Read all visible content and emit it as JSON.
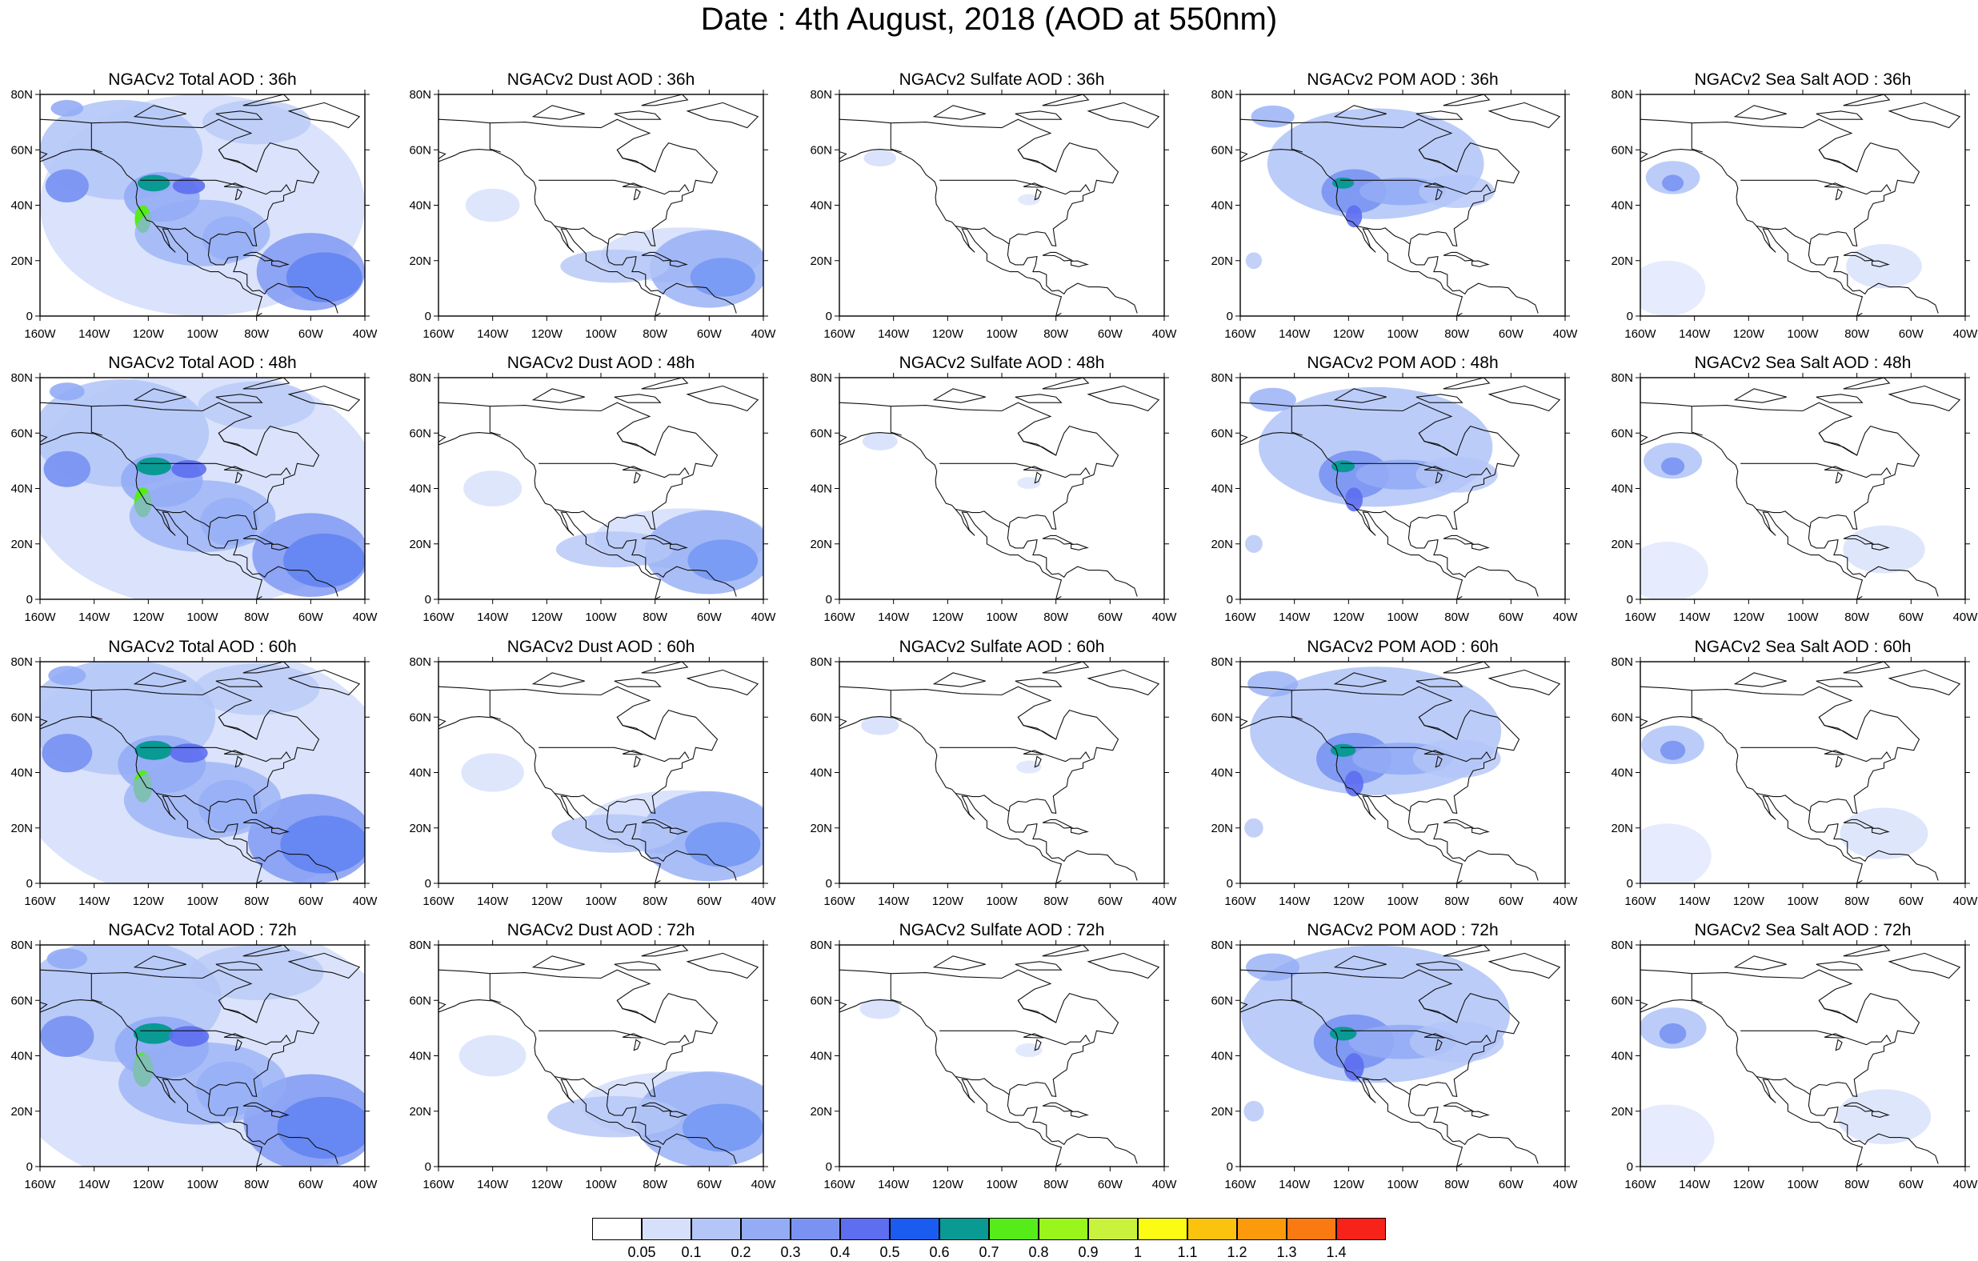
{
  "title": "Date : 4th August, 2018 (AOD at 550nm)",
  "panels": [
    [
      "NGACv2 Total AOD : 36h",
      "NGACv2 Dust AOD : 36h",
      "NGACv2 Sulfate AOD : 36h",
      "NGACv2 POM AOD : 36h",
      "NGACv2 Sea Salt AOD : 36h"
    ],
    [
      "NGACv2 Total AOD : 48h",
      "NGACv2 Dust AOD : 48h",
      "NGACv2 Sulfate AOD : 48h",
      "NGACv2 POM AOD : 48h",
      "NGACv2 Sea Salt AOD : 48h"
    ],
    [
      "NGACv2 Total AOD : 60h",
      "NGACv2 Dust AOD : 60h",
      "NGACv2 Sulfate AOD : 60h",
      "NGACv2 POM AOD : 60h",
      "NGACv2 Sea Salt AOD : 60h"
    ],
    [
      "NGACv2 Total AOD : 72h",
      "NGACv2 Dust AOD : 72h",
      "NGACv2 Sulfate AOD : 72h",
      "NGACv2 POM AOD : 72h",
      "NGACv2 Sea Salt  AOD : 72h"
    ]
  ],
  "lat_labels": [
    "80N",
    "60N",
    "40N",
    "20N",
    "0"
  ],
  "lon_labels": [
    "160W",
    "140W",
    "120W",
    "100W",
    "80W",
    "60W",
    "40W"
  ],
  "colorbar": {
    "colors": [
      "#ffffff",
      "#d6e0fb",
      "#b4c6f7",
      "#93acf5",
      "#7a93f2",
      "#5d6ef0",
      "#1a5cf0",
      "#0a9a94",
      "#55ec1a",
      "#9af51a",
      "#c9f23c",
      "#fbfb14",
      "#fbc20e",
      "#fb9a0a",
      "#f97a10",
      "#f7221a"
    ],
    "labels": [
      "0.05",
      "0.1",
      "0.2",
      "0.3",
      "0.4",
      "0.5",
      "0.6",
      "0.7",
      "0.8",
      "0.9",
      "1",
      "1.1",
      "1.2",
      "1.3",
      "1.4"
    ]
  }
}
